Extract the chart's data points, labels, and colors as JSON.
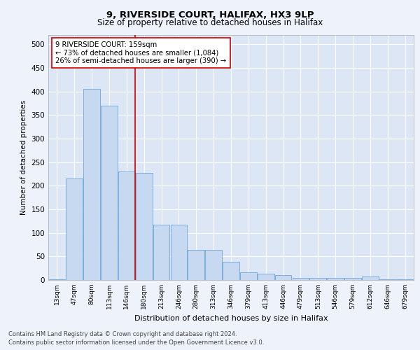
{
  "title1": "9, RIVERSIDE COURT, HALIFAX, HX3 9LP",
  "title2": "Size of property relative to detached houses in Halifax",
  "xlabel": "Distribution of detached houses by size in Halifax",
  "ylabel": "Number of detached properties",
  "categories": [
    "13sqm",
    "47sqm",
    "80sqm",
    "113sqm",
    "146sqm",
    "180sqm",
    "213sqm",
    "246sqm",
    "280sqm",
    "313sqm",
    "346sqm",
    "379sqm",
    "413sqm",
    "446sqm",
    "479sqm",
    "513sqm",
    "546sqm",
    "579sqm",
    "612sqm",
    "646sqm",
    "679sqm"
  ],
  "values": [
    2,
    215,
    405,
    370,
    230,
    228,
    118,
    118,
    64,
    64,
    38,
    17,
    14,
    10,
    5,
    5,
    5,
    5,
    7,
    2,
    1
  ],
  "bar_color": "#c6d9f0",
  "bar_edge_color": "#5b9bd5",
  "vline_color": "#cc0000",
  "annotation_text": "9 RIVERSIDE COURT: 159sqm\n← 73% of detached houses are smaller (1,084)\n26% of semi-detached houses are larger (390) →",
  "annotation_box_color": "#ffffff",
  "annotation_box_edge": "#cc0000",
  "fig_bg_color": "#edf2fb",
  "plot_bg": "#dce6f5",
  "grid_color": "#ffffff",
  "footer1": "Contains HM Land Registry data © Crown copyright and database right 2024.",
  "footer2": "Contains public sector information licensed under the Open Government Licence v3.0.",
  "ylim": [
    0,
    520
  ],
  "yticks": [
    0,
    50,
    100,
    150,
    200,
    250,
    300,
    350,
    400,
    450,
    500
  ],
  "vline_pos": 4.5
}
